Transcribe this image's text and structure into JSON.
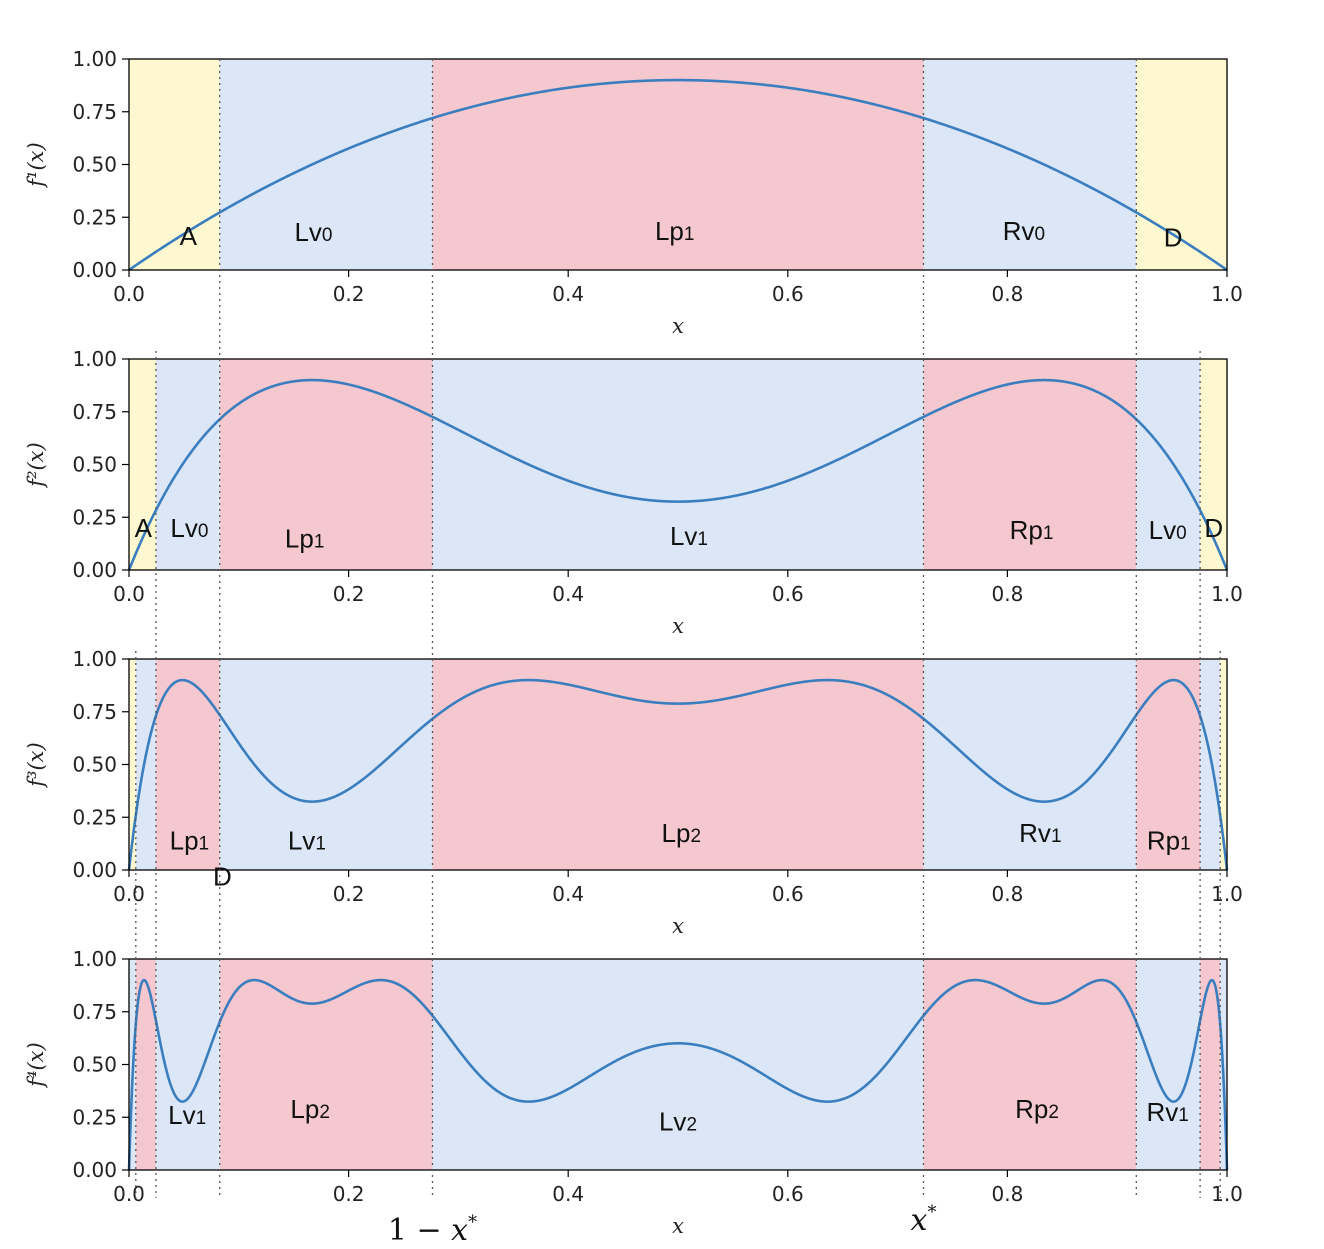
{
  "colors": {
    "yellow": "#fdf8cf",
    "blue": "#dbe7f7",
    "red": "#f5c8d0",
    "curve": "#3a7ebf",
    "frame": "#000000",
    "dotted": "#555555"
  },
  "boundaries_x": [
    0.0062,
    0.0245,
    0.0826,
    0.2764,
    0.7236,
    0.9174,
    0.9755,
    0.9938
  ],
  "annotations": {
    "left": {
      "prefix": "1 − ",
      "var": "x",
      "sup": "*",
      "x": 0.2764
    },
    "right": {
      "var": "x",
      "sup": "*",
      "x": 0.7236
    }
  },
  "chart_data": [
    {
      "type": "line",
      "iterate": 1,
      "ylabel": "f¹(x)",
      "xlabel": "x",
      "xlim": [
        0,
        1
      ],
      "ylim": [
        0,
        1
      ],
      "xticks": [
        "0.0",
        "0.2",
        "0.4",
        "0.6",
        "0.8",
        "1.0"
      ],
      "yticks": [
        "0.00",
        "0.25",
        "0.50",
        "0.75",
        "1.00"
      ],
      "function": "f(x) = 3.6 x (1 - x), iterated 1 time",
      "peak": {
        "x": 0.5,
        "y": 0.9
      },
      "regions": [
        {
          "x0": 0,
          "x1": 0.0826,
          "color": "yellow"
        },
        {
          "x0": 0.0826,
          "x1": 0.2764,
          "color": "blue"
        },
        {
          "x0": 0.2764,
          "x1": 0.7236,
          "color": "red"
        },
        {
          "x0": 0.7236,
          "x1": 0.9174,
          "color": "blue"
        },
        {
          "x0": 0.9174,
          "x1": 1,
          "color": "yellow"
        }
      ],
      "labels": [
        {
          "main": "A",
          "sub": "",
          "x": 0.054,
          "y": 0.16
        },
        {
          "main": "Lv",
          "sub": "0",
          "x": 0.168,
          "y": 0.18
        },
        {
          "main": "Lp",
          "sub": "1",
          "x": 0.497,
          "y": 0.185
        },
        {
          "main": "Rv",
          "sub": "0",
          "x": 0.815,
          "y": 0.185
        },
        {
          "main": "D",
          "sub": "",
          "x": 0.951,
          "y": 0.155
        }
      ]
    },
    {
      "type": "line",
      "iterate": 2,
      "ylabel": "f²(x)",
      "xlabel": "x",
      "xlim": [
        0,
        1
      ],
      "ylim": [
        0,
        1
      ],
      "xticks": [
        "0.0",
        "0.2",
        "0.4",
        "0.6",
        "0.8",
        "1.0"
      ],
      "yticks": [
        "0.00",
        "0.25",
        "0.50",
        "0.75",
        "1.00"
      ],
      "function": "f(x) = 3.6 x (1 - x), iterated 2 times",
      "peaks": [
        {
          "x": 0.1667,
          "y": 0.9
        },
        {
          "x": 0.8333,
          "y": 0.9
        }
      ],
      "valley": {
        "x": 0.5,
        "y": 0.324
      },
      "regions": [
        {
          "x0": 0,
          "x1": 0.0245,
          "color": "yellow"
        },
        {
          "x0": 0.0245,
          "x1": 0.0826,
          "color": "blue"
        },
        {
          "x0": 0.0826,
          "x1": 0.2764,
          "color": "red"
        },
        {
          "x0": 0.2764,
          "x1": 0.7236,
          "color": "blue"
        },
        {
          "x0": 0.7236,
          "x1": 0.9174,
          "color": "red"
        },
        {
          "x0": 0.9174,
          "x1": 0.9755,
          "color": "blue"
        },
        {
          "x0": 0.9755,
          "x1": 1,
          "color": "yellow"
        }
      ],
      "labels": [
        {
          "main": "A",
          "sub": "",
          "x": 0.013,
          "y": 0.2
        },
        {
          "main": "Lv",
          "sub": "0",
          "x": 0.055,
          "y": 0.2
        },
        {
          "main": "Lp",
          "sub": "1",
          "x": 0.16,
          "y": 0.15
        },
        {
          "main": "Lv",
          "sub": "1",
          "x": 0.51,
          "y": 0.16
        },
        {
          "main": "Rp",
          "sub": "1",
          "x": 0.822,
          "y": 0.19
        },
        {
          "main": "Lv",
          "sub": "0",
          "x": 0.946,
          "y": 0.19
        },
        {
          "main": "D",
          "sub": "",
          "x": 0.988,
          "y": 0.2
        }
      ]
    },
    {
      "type": "line",
      "iterate": 3,
      "ylabel": "f³(x)",
      "xlabel": "x",
      "xlim": [
        0,
        1
      ],
      "ylim": [
        0,
        1
      ],
      "xticks": [
        "0.0",
        "0.2",
        "0.4",
        "0.6",
        "0.8",
        "1.0"
      ],
      "yticks": [
        "0.00",
        "0.25",
        "0.50",
        "0.75",
        "1.00"
      ],
      "function": "f(x) = 3.6 x (1 - x), iterated 3 times",
      "regions": [
        {
          "x0": 0,
          "x1": 0.0062,
          "color": "yellow"
        },
        {
          "x0": 0.0062,
          "x1": 0.0245,
          "color": "blue"
        },
        {
          "x0": 0.0245,
          "x1": 0.0826,
          "color": "red"
        },
        {
          "x0": 0.0826,
          "x1": 0.2764,
          "color": "blue"
        },
        {
          "x0": 0.2764,
          "x1": 0.7236,
          "color": "red"
        },
        {
          "x0": 0.7236,
          "x1": 0.9174,
          "color": "blue"
        },
        {
          "x0": 0.9174,
          "x1": 0.9755,
          "color": "red"
        },
        {
          "x0": 0.9755,
          "x1": 0.9938,
          "color": "blue"
        },
        {
          "x0": 0.9938,
          "x1": 1,
          "color": "yellow"
        }
      ],
      "labels": [
        {
          "main": "Lp",
          "sub": "1",
          "x": 0.055,
          "y": 0.14
        },
        {
          "main": "Lv",
          "sub": "1",
          "x": 0.162,
          "y": 0.14
        },
        {
          "main": "Lp",
          "sub": "2",
          "x": 0.503,
          "y": 0.175
        },
        {
          "main": "Rv",
          "sub": "1",
          "x": 0.83,
          "y": 0.175
        },
        {
          "main": "Rp",
          "sub": "1",
          "x": 0.947,
          "y": 0.14
        },
        {
          "main": "D",
          "sub": "",
          "x": 0.085,
          "y": -0.03
        }
      ]
    },
    {
      "type": "line",
      "iterate": 4,
      "ylabel": "f⁴(x)",
      "xlabel": "x",
      "xlim": [
        0,
        1
      ],
      "ylim": [
        0,
        1
      ],
      "xticks": [
        "0.0",
        "0.2",
        "0.4",
        "0.6",
        "0.8",
        "1.0"
      ],
      "yticks": [
        "0.00",
        "0.25",
        "0.50",
        "0.75",
        "1.00"
      ],
      "function": "f(x) = 3.6 x (1 - x), iterated 4 times",
      "regions": [
        {
          "x0": 0,
          "x1": 0.0062,
          "color": "blue"
        },
        {
          "x0": 0.0062,
          "x1": 0.0245,
          "color": "red"
        },
        {
          "x0": 0.0245,
          "x1": 0.0826,
          "color": "blue"
        },
        {
          "x0": 0.0826,
          "x1": 0.2764,
          "color": "red"
        },
        {
          "x0": 0.2764,
          "x1": 0.7236,
          "color": "blue"
        },
        {
          "x0": 0.7236,
          "x1": 0.9174,
          "color": "red"
        },
        {
          "x0": 0.9174,
          "x1": 0.9755,
          "color": "blue"
        },
        {
          "x0": 0.9755,
          "x1": 0.9938,
          "color": "red"
        },
        {
          "x0": 0.9938,
          "x1": 1,
          "color": "blue"
        }
      ],
      "labels": [
        {
          "main": "Lv",
          "sub": "1",
          "x": 0.053,
          "y": 0.26
        },
        {
          "main": "Lp",
          "sub": "2",
          "x": 0.165,
          "y": 0.29
        },
        {
          "main": "Lv",
          "sub": "2",
          "x": 0.5,
          "y": 0.23
        },
        {
          "main": "Rp",
          "sub": "2",
          "x": 0.827,
          "y": 0.29
        },
        {
          "main": "Rv",
          "sub": "1",
          "x": 0.946,
          "y": 0.275
        }
      ]
    }
  ]
}
